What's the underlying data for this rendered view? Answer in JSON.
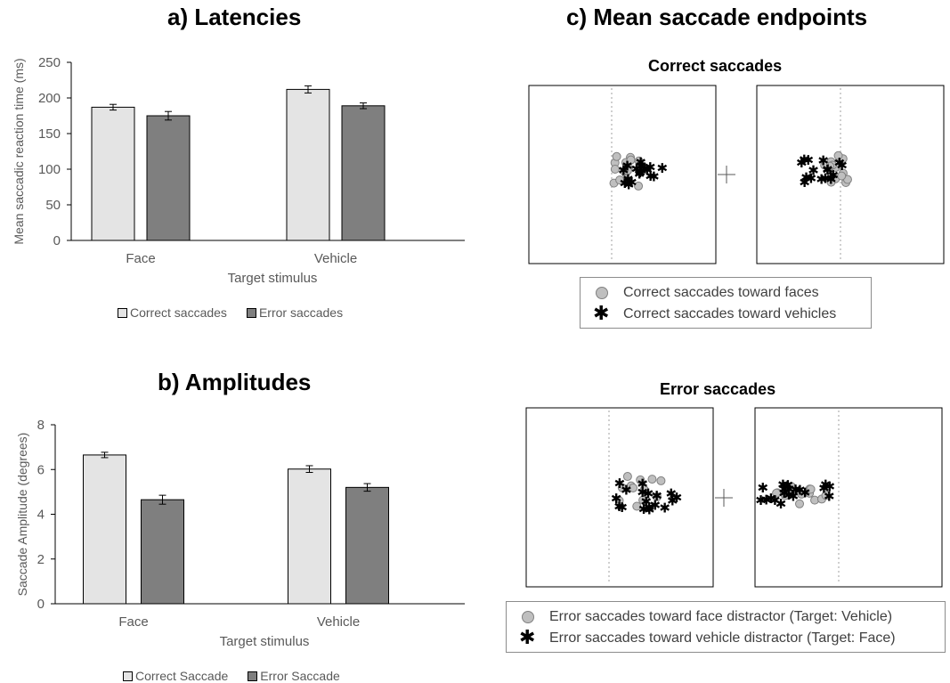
{
  "panel_a": {
    "title": "a) Latencies",
    "legend": [
      "Correct saccades",
      "Error saccades"
    ]
  },
  "panel_b": {
    "title": "b) Amplitudes",
    "legend": [
      "Correct Saccade",
      "Error Saccade"
    ]
  },
  "panel_c": {
    "title": "c) Mean saccade endpoints",
    "correct_title": "Correct saccades",
    "error_title": "Error saccades",
    "correct_legend": [
      "Correct saccades toward faces",
      "Correct saccades toward vehicles"
    ],
    "error_legend": [
      "Error saccades toward face distractor (Target: Vehicle)",
      "Error saccades toward vehicle distractor (Target: Face)"
    ]
  },
  "colors": {
    "correct": "#e4e4e4",
    "error": "#7f7f7f",
    "face_marker": "#bfbfbf",
    "vehicle_marker": "#000000"
  },
  "chart_data": [
    {
      "type": "bar",
      "title": "a) Latencies",
      "categories": [
        "Face",
        "Vehicle"
      ],
      "xlabel": "Target stimulus",
      "ylabel": "Mean saccadic reaction time (ms)",
      "ylim": [
        0,
        250
      ],
      "yticks": [
        0,
        50,
        100,
        150,
        200,
        250
      ],
      "series": [
        {
          "name": "Correct saccades",
          "values": [
            187,
            212
          ],
          "errors": [
            4,
            5
          ]
        },
        {
          "name": "Error saccades",
          "values": [
            175,
            189
          ],
          "errors": [
            6,
            4
          ]
        }
      ],
      "legend": "bottom"
    },
    {
      "type": "bar",
      "title": "b) Amplitudes",
      "categories": [
        "Face",
        "Vehicle"
      ],
      "xlabel": "Target stimulus",
      "ylabel": "Saccade Amplitude (degrees)",
      "ylim": [
        0,
        8
      ],
      "yticks": [
        0,
        2,
        4,
        6,
        8
      ],
      "series": [
        {
          "name": "Correct Saccade",
          "values": [
            6.65,
            6.02
          ],
          "errors": [
            0.12,
            0.15
          ]
        },
        {
          "name": "Error Saccade",
          "values": [
            4.65,
            5.2
          ],
          "errors": [
            0.2,
            0.17
          ]
        }
      ],
      "legend": "bottom"
    }
  ]
}
